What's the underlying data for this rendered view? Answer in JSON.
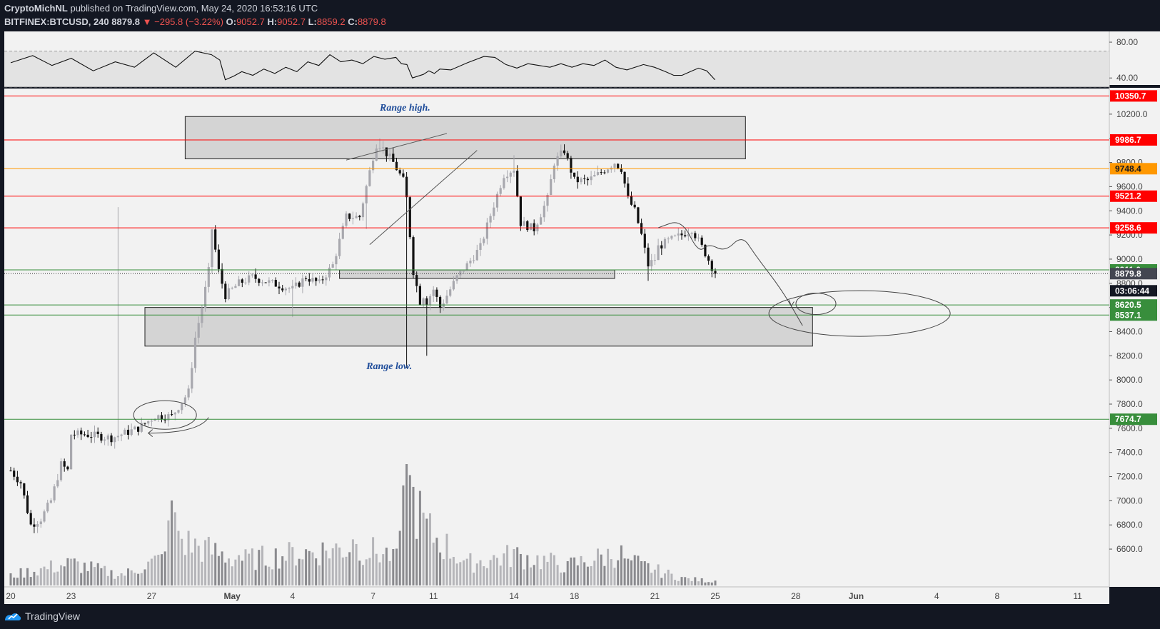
{
  "header": {
    "author": "CryptoMichNL",
    "published_text": "published on TradingView.com, May 24, 2020 16:53:16 UTC",
    "symbol": "BITFINEX:BTCUSD, 240",
    "last": "8879.8",
    "change": "▼ −295.8 (−3.22%)",
    "o_label": "O:",
    "o_value": "9052.7",
    "h_label": "H:",
    "h_value": "9052.7",
    "l_label": "L:",
    "l_value": "8859.2",
    "c_label": "C:",
    "c_value": "8879.8"
  },
  "footer": {
    "brand": "TradingView",
    "logo_icon": "tradingview-logo-icon"
  },
  "colors": {
    "background": "#f2f2f2",
    "frame": "#131722",
    "up": "#a8a8ae",
    "down": "#111111",
    "red_level": "#ff0000",
    "orange_level": "#ff9800",
    "green_level": "#388e3c",
    "zone_fill": "#d4d4d4",
    "annotation_text": "#1e4c9a"
  },
  "chart_data": [
    {
      "type": "line",
      "name": "rsi-panel",
      "y_ticks": [
        40,
        80
      ],
      "y_tick_labels": [
        "40.00",
        "80.00"
      ],
      "ylim": [
        33,
        92
      ],
      "bands": [
        30,
        70
      ],
      "x": [
        0,
        8,
        15,
        22,
        30,
        38,
        45,
        52,
        60,
        67,
        73,
        76,
        78,
        81,
        84,
        88,
        92,
        96,
        100,
        104,
        108,
        112,
        116,
        120,
        124,
        128,
        132,
        136,
        140,
        142,
        144,
        146,
        148,
        150,
        152,
        154,
        156,
        160,
        166,
        172,
        176,
        180,
        184,
        188,
        192,
        196,
        200,
        204,
        208,
        212,
        216,
        220,
        224,
        230,
        234,
        238,
        241,
        244,
        247,
        250,
        253,
        256
      ],
      "y": [
        57,
        65,
        54,
        62,
        48,
        58,
        52,
        68,
        52,
        70,
        66,
        60,
        38,
        42,
        47,
        43,
        50,
        45,
        52,
        47,
        58,
        54,
        66,
        58,
        60,
        56,
        64,
        61,
        63,
        56,
        55,
        40,
        42,
        44,
        48,
        45,
        50,
        49,
        57,
        64,
        63,
        55,
        51,
        56,
        54,
        52,
        56,
        52,
        56,
        54,
        60,
        52,
        49,
        55,
        52,
        47,
        43,
        43,
        47,
        51,
        48,
        38
      ]
    },
    {
      "type": "candlestick",
      "name": "BTCUSD 4h price",
      "ylim": [
        6480,
        10500
      ],
      "y_ticks": [
        6600,
        6800,
        7000,
        7200,
        7400,
        7600,
        7800,
        8000,
        8200,
        8400,
        8600,
        8800,
        9000,
        9200,
        9400,
        9600,
        9800,
        10000,
        10200,
        10400
      ],
      "y_tick_labels": [
        "6600.0",
        "6800.0",
        "7000.0",
        "7200.0",
        "7400.0",
        "7600.0",
        "7800.0",
        "8000.0",
        "8200.0",
        "8400.0",
        "8600.0",
        "8800.0",
        "9000.0",
        "9200.0",
        "9400.0",
        "9600.0",
        "9800.0",
        "10000.0",
        "10200.0",
        "10400.0"
      ],
      "x_ticks": [
        0,
        18,
        42,
        66,
        84,
        108,
        126,
        150,
        168,
        192,
        210,
        234,
        252,
        276,
        294,
        318,
        336
      ],
      "x_tick_labels": [
        "20",
        "23",
        "27",
        "May",
        "4",
        "7",
        "11",
        "14",
        "18",
        "21",
        "25",
        "28",
        "Jun",
        "4",
        "8",
        "11",
        ""
      ],
      "x_tick_labels_final": [
        "20",
        "23",
        "27",
        "May",
        "4",
        "7",
        "11",
        "14",
        "18",
        "21",
        "25",
        "28",
        "Jun",
        "4",
        "8",
        "11"
      ],
      "close_anchors": {
        "x": [
          0,
          3,
          6,
          9,
          12,
          15,
          17,
          18,
          22,
          30,
          38,
          43,
          48,
          53,
          55,
          57,
          59,
          60,
          62,
          64,
          68,
          72,
          78,
          84,
          88,
          92,
          96,
          100,
          104,
          106,
          108,
          109,
          110,
          114,
          117,
          118,
          120,
          122,
          123,
          124,
          126,
          128,
          129,
          131,
          133,
          136,
          140,
          144,
          147,
          150,
          152,
          156,
          160,
          162,
          165,
          168,
          172,
          175,
          180,
          182,
          184,
          186,
          188,
          190,
          192,
          193,
          196,
          200,
          203,
          207,
          210
        ],
        "close": [
          7250,
          7150,
          6800,
          6850,
          7000,
          7300,
          7250,
          7550,
          7550,
          7520,
          7600,
          7700,
          7700,
          7900,
          8350,
          8600,
          8900,
          9250,
          8900,
          8700,
          8800,
          8850,
          8800,
          8750,
          8850,
          8800,
          8950,
          9350,
          9350,
          9600,
          9850,
          9950,
          9950,
          9800,
          9650,
          9500,
          8900,
          8650,
          8700,
          8650,
          8750,
          8600,
          8650,
          8750,
          8850,
          8950,
          9100,
          9450,
          9700,
          9750,
          9300,
          9250,
          9500,
          9800,
          9900,
          9650,
          9650,
          9700,
          9800,
          9750,
          9500,
          9400,
          9200,
          8950,
          9000,
          9100,
          9150,
          9200,
          9250,
          9050,
          8880
        ]
      },
      "wick_extremes": [
        {
          "x": 32,
          "high": 9430
        },
        {
          "x": 84,
          "low": 8520
        },
        {
          "x": 106,
          "low": 9250
        },
        {
          "x": 110,
          "high": 10000
        },
        {
          "x": 118,
          "low": 8100
        },
        {
          "x": 124,
          "low": 8200
        },
        {
          "x": 150,
          "high": 9860
        },
        {
          "x": 165,
          "high": 9950
        },
        {
          "x": 190,
          "low": 8820
        }
      ],
      "volume": {
        "note": "relative bar heights, max = largest bar on May 10",
        "x": [
          0,
          18,
          33,
          46,
          48,
          50,
          68,
          102,
          114,
          116,
          118,
          124,
          136,
          150,
          166,
          182,
          184,
          186,
          188,
          200,
          210
        ],
        "rel": [
          0.1,
          0.22,
          0.1,
          0.28,
          0.7,
          0.45,
          0.25,
          0.38,
          0.3,
          0.45,
          1.0,
          0.55,
          0.22,
          0.3,
          0.2,
          0.33,
          0.22,
          0.25,
          0.2,
          0.07,
          0.04
        ]
      }
    }
  ],
  "levels": [
    {
      "price": 10350.7,
      "color": "#ff0000",
      "label": "10350.7",
      "badge_text": "#ffffff",
      "badge_bg": "#ff0000"
    },
    {
      "price": 9986.7,
      "color": "#ff0000",
      "label": "9986.7",
      "badge_text": "#ffffff",
      "badge_bg": "#ff0000"
    },
    {
      "price": 9748.4,
      "color": "#ff9800",
      "label": "9748.4",
      "badge_text": "#131722",
      "badge_bg": "#ff9800"
    },
    {
      "price": 9521.2,
      "color": "#ff0000",
      "label": "9521.2",
      "badge_text": "#ffffff",
      "badge_bg": "#ff0000"
    },
    {
      "price": 9258.6,
      "color": "#ff0000",
      "label": "9258.6",
      "badge_text": "#ffffff",
      "badge_bg": "#ff0000"
    },
    {
      "price": 8911.0,
      "color": "#388e3c",
      "label": "8911.0",
      "badge_text": "#ffffff",
      "badge_bg": "#388e3c"
    },
    {
      "price": 8620.5,
      "color": "#388e3c",
      "label": "8620.5",
      "badge_text": "#ffffff",
      "badge_bg": "#388e3c"
    },
    {
      "price": 8537.1,
      "color": "#388e3c",
      "label": "8537.1",
      "badge_text": "#ffffff",
      "badge_bg": "#388e3c"
    },
    {
      "price": 7674.7,
      "color": "#388e3c",
      "label": "7674.7",
      "badge_text": "#ffffff",
      "badge_bg": "#388e3c"
    }
  ],
  "last_price_badge": {
    "price": 8879.8,
    "label": "8879.8",
    "bg": "#434651"
  },
  "countdown_badge": {
    "label": "03:06:44"
  },
  "zones": [
    {
      "name": "range-high-zone",
      "x_from": 52,
      "x_to": 219,
      "price_top": 10180,
      "price_bottom": 9830
    },
    {
      "name": "range-low-zone",
      "x_from": 40,
      "x_to": 239,
      "price_top": 8600,
      "price_bottom": 8280
    },
    {
      "name": "support-strip",
      "x_from": 98,
      "x_to": 180,
      "price_top": 8910,
      "price_bottom": 8840
    }
  ],
  "annotations": {
    "range_high": {
      "text": "Range high.",
      "x": 110,
      "price": 10230
    },
    "range_low": {
      "text": "Range low.",
      "x": 106,
      "price": 8090
    }
  },
  "drawings": {
    "trend_upper": {
      "x1": 100,
      "p1": 9820,
      "x2": 130,
      "p2": 10040
    },
    "trend_lower": {
      "x1": 107,
      "p1": 9120,
      "x2": 139,
      "p2": 9900
    },
    "projection": [
      [
        193,
        9260
      ],
      [
        200,
        9330
      ],
      [
        205,
        9050
      ],
      [
        208,
        9130
      ],
      [
        213,
        9060
      ],
      [
        218,
        9200
      ],
      [
        222,
        9030
      ],
      [
        230,
        8740
      ],
      [
        236,
        8450
      ]
    ]
  }
}
